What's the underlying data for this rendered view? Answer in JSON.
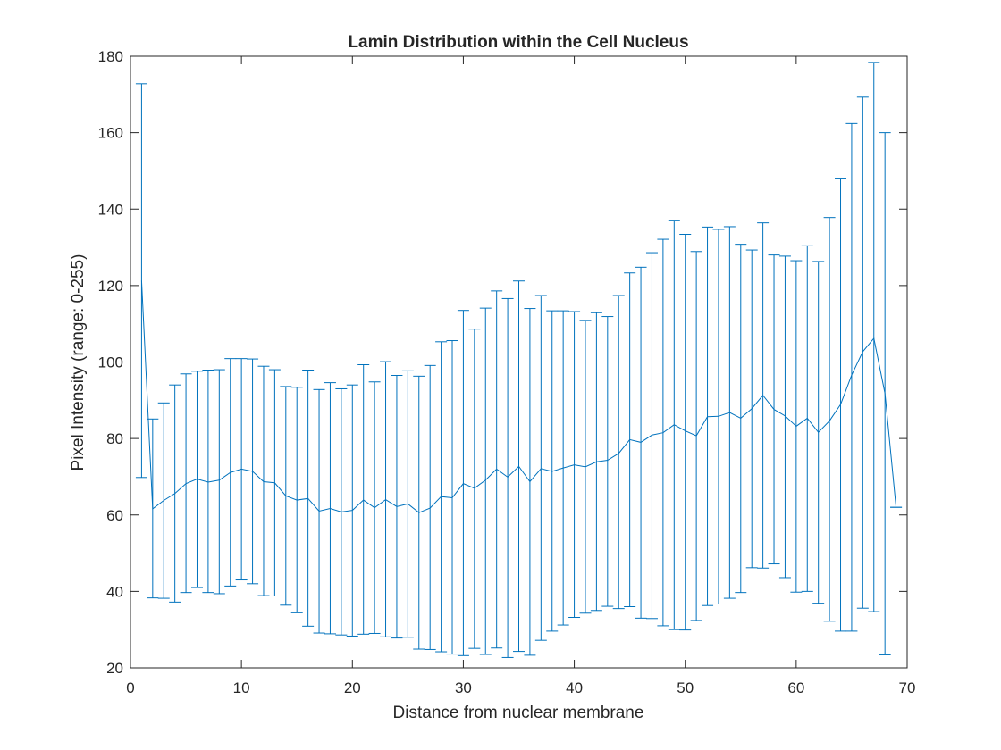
{
  "chart_data": {
    "type": "line",
    "title": "Lamin Distribution within the Cell Nucleus",
    "xlabel": "Distance from nuclear membrane",
    "ylabel": "Pixel Intensity (range: 0-255)",
    "xlim": [
      0,
      70
    ],
    "ylim": [
      20,
      180
    ],
    "xticks": [
      0,
      10,
      20,
      30,
      40,
      50,
      60,
      70
    ],
    "yticks": [
      20,
      40,
      60,
      80,
      100,
      120,
      140,
      160,
      180
    ],
    "grid": false,
    "series_color": "#0072BD",
    "x": [
      1,
      2,
      3,
      4,
      5,
      6,
      7,
      8,
      9,
      10,
      11,
      12,
      13,
      14,
      15,
      16,
      17,
      18,
      19,
      20,
      21,
      22,
      23,
      24,
      25,
      26,
      27,
      28,
      29,
      30,
      31,
      32,
      33,
      34,
      35,
      36,
      37,
      38,
      39,
      40,
      41,
      42,
      43,
      44,
      45,
      46,
      47,
      48,
      49,
      50,
      51,
      52,
      53,
      54,
      55,
      56,
      57,
      58,
      59,
      60,
      61,
      62,
      63,
      64,
      65,
      66,
      67,
      68,
      69
    ],
    "mean": [
      121.3,
      61.6,
      63.8,
      65.6,
      68.2,
      69.4,
      68.6,
      69.1,
      71.1,
      72.0,
      71.4,
      68.7,
      68.4,
      65.0,
      63.9,
      64.3,
      61.0,
      61.7,
      60.8,
      61.2,
      63.9,
      61.9,
      64.0,
      62.2,
      62.9,
      60.6,
      61.8,
      64.8,
      64.5,
      68.2,
      67.0,
      69.1,
      72.0,
      69.9,
      72.7,
      68.7,
      72.1,
      71.4,
      72.3,
      73.1,
      72.6,
      73.9,
      74.3,
      76.1,
      79.7,
      79.0,
      80.9,
      81.5,
      83.6,
      82.0,
      80.7,
      85.7,
      85.8,
      86.8,
      85.3,
      87.8,
      91.3,
      87.6,
      85.9,
      83.2,
      85.3,
      81.6,
      84.6,
      88.9,
      96.6,
      102.7,
      106.2,
      91.8,
      62.0
    ],
    "upper": [
      172.8,
      85.1,
      89.3,
      94.0,
      96.9,
      97.6,
      97.9,
      98.0,
      100.9,
      100.9,
      100.8,
      98.9,
      98.0,
      93.6,
      93.4,
      97.9,
      92.8,
      94.6,
      93.0,
      94.0,
      99.3,
      94.8,
      100.1,
      96.5,
      97.7,
      96.3,
      99.1,
      105.3,
      105.6,
      113.5,
      108.6,
      114.1,
      118.6,
      116.6,
      121.2,
      114.0,
      117.4,
      113.4,
      113.4,
      113.2,
      110.9,
      112.9,
      111.9,
      117.4,
      123.3,
      124.8,
      128.6,
      132.1,
      137.1,
      133.4,
      128.9,
      135.3,
      134.7,
      135.4,
      130.8,
      129.3,
      136.4,
      128.0,
      127.7,
      126.5,
      130.4,
      126.3,
      137.8,
      148.1,
      162.4,
      169.3,
      178.4,
      160.0,
      62.0
    ],
    "lower": [
      69.8,
      38.3,
      38.2,
      37.2,
      39.7,
      41.0,
      39.7,
      39.4,
      41.4,
      43.0,
      42.0,
      38.9,
      38.8,
      36.4,
      34.4,
      30.9,
      29.1,
      28.9,
      28.6,
      28.3,
      28.8,
      29.0,
      28.1,
      27.8,
      28.0,
      24.9,
      24.8,
      24.2,
      23.6,
      23.2,
      25.1,
      23.5,
      25.2,
      22.7,
      24.3,
      23.3,
      27.2,
      29.6,
      31.2,
      33.2,
      34.3,
      35.0,
      36.1,
      35.5,
      36.0,
      33.0,
      32.9,
      31.0,
      30.0,
      29.9,
      32.4,
      36.3,
      36.7,
      38.2,
      39.7,
      46.2,
      46.1,
      47.2,
      43.6,
      39.8,
      40.0,
      36.9,
      32.2,
      29.6,
      29.6,
      35.6,
      34.7,
      23.4,
      62.0
    ]
  }
}
